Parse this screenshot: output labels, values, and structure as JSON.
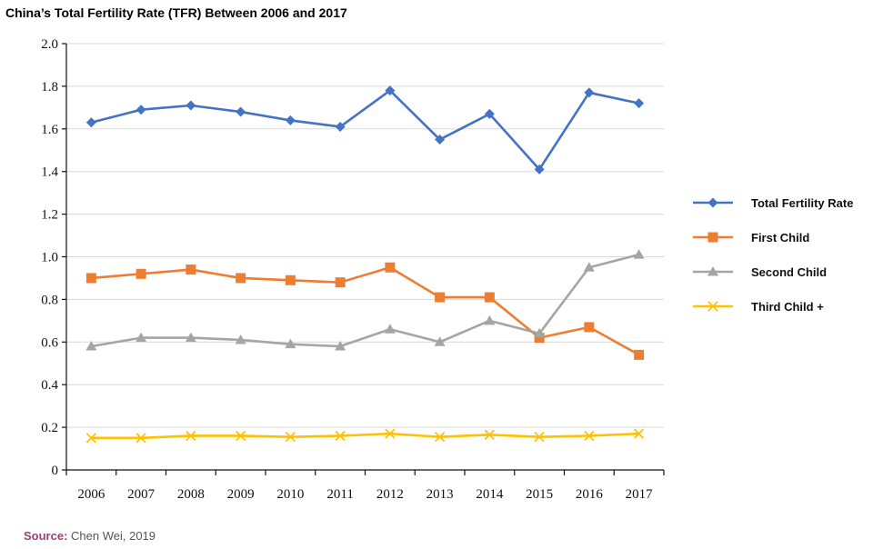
{
  "title": "China’s Total Fertility Rate (TFR) Between 2006 and 2017",
  "source": {
    "label": "Source:",
    "text": "Chen Wei, 2019"
  },
  "chart_data": {
    "type": "line",
    "x": [
      "2006",
      "2007",
      "2008",
      "2009",
      "2010",
      "2011",
      "2012",
      "2013",
      "2014",
      "2015",
      "2016",
      "2017"
    ],
    "ylim": [
      0,
      2.0
    ],
    "yticks": [
      "0",
      "0.2",
      "0.4",
      "0.6",
      "0.8",
      "1.0",
      "1.2",
      "1.4",
      "1.6",
      "1.8",
      "2.0"
    ],
    "grid": true,
    "legend_position": "right",
    "series": [
      {
        "name": "Total Fertility Rate",
        "color": "#4472c4",
        "marker": "diamond",
        "values": [
          1.63,
          1.69,
          1.71,
          1.68,
          1.64,
          1.61,
          1.78,
          1.55,
          1.67,
          1.41,
          1.77,
          1.72
        ]
      },
      {
        "name": "First Child",
        "color": "#ed7d31",
        "marker": "square",
        "values": [
          0.9,
          0.92,
          0.94,
          0.9,
          0.89,
          0.88,
          0.95,
          0.81,
          0.81,
          0.62,
          0.67,
          0.54
        ]
      },
      {
        "name": "Second Child",
        "color": "#a5a5a5",
        "marker": "triangle",
        "values": [
          0.58,
          0.62,
          0.62,
          0.61,
          0.59,
          0.58,
          0.66,
          0.6,
          0.7,
          0.64,
          0.95,
          1.01
        ]
      },
      {
        "name": "Third Child +",
        "color": "#ffc000",
        "marker": "x",
        "values": [
          0.15,
          0.15,
          0.16,
          0.16,
          0.155,
          0.16,
          0.17,
          0.155,
          0.165,
          0.155,
          0.16,
          0.17
        ]
      }
    ]
  }
}
